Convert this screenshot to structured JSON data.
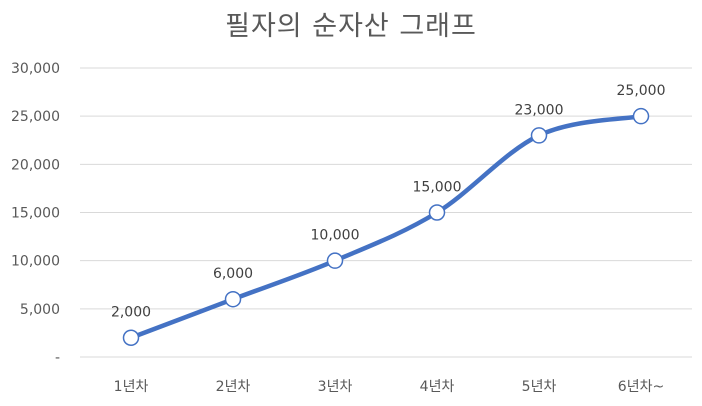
{
  "chart_data": {
    "type": "line",
    "title": "필자의 순자산 그래프",
    "categories": [
      "1년차",
      "2년차",
      "3년차",
      "4년차",
      "5년차",
      "6년차~"
    ],
    "series": [
      {
        "values": [
          2000,
          6000,
          10000,
          15000,
          23000,
          25000
        ],
        "value_labels": [
          "2,000",
          "6,000",
          "10,000",
          "15,000",
          "23,000",
          "25,000"
        ],
        "color": "#4472C4",
        "smooth": true,
        "marker": "circle"
      }
    ],
    "ylim": [
      0,
      30000
    ],
    "yticks": [
      0,
      5000,
      10000,
      15000,
      20000,
      25000,
      30000
    ],
    "ytick_labels": [
      "-",
      "5,000",
      "10,000",
      "15,000",
      "20,000",
      "25,000",
      "30,000"
    ],
    "xlabel": "",
    "ylabel": "",
    "grid": true,
    "gridline_color": "#D9D9D9",
    "axis_text_color": "#595959"
  }
}
